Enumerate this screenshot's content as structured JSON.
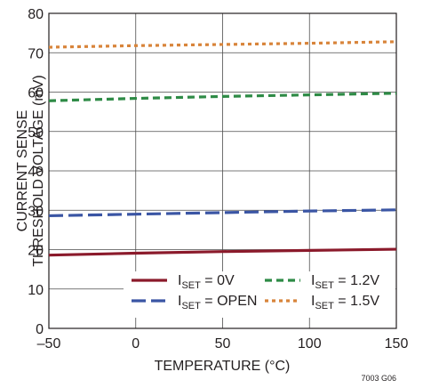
{
  "chart_data": {
    "type": "line",
    "xlabel": "TEMPERATURE (°C)",
    "ylabel_lines": [
      "CURRENT SENSE",
      "THRESHOLD VOLTAGE (mV)"
    ],
    "xlim": [
      -50,
      150
    ],
    "ylim": [
      0,
      80
    ],
    "x_ticks": [
      -50,
      0,
      50,
      100,
      150
    ],
    "y_ticks": [
      0,
      10,
      20,
      30,
      40,
      50,
      60,
      70,
      80
    ],
    "x_tick_labels": [
      "–50",
      "0",
      "50",
      "100",
      "150"
    ],
    "y_tick_labels": [
      "0",
      "10",
      "20",
      "30",
      "40",
      "50",
      "60",
      "70",
      "80"
    ],
    "grid": true,
    "legend_position": "bottom",
    "x": [
      -50,
      0,
      50,
      100,
      150
    ],
    "series": [
      {
        "name_main": "I",
        "name_sub": "SET",
        "name_rest": " = 0V",
        "color": "#8b1a2b",
        "style": "solid",
        "values": [
          18.6,
          19.1,
          19.5,
          19.8,
          20.1
        ]
      },
      {
        "name_main": "I",
        "name_sub": "SET",
        "name_rest": " = OPEN",
        "color": "#3a55a4",
        "style": "longdash",
        "values": [
          28.6,
          29.0,
          29.4,
          29.8,
          30.1
        ]
      },
      {
        "name_main": "I",
        "name_sub": "SET",
        "name_rest": " = 1.2V",
        "color": "#2e8b46",
        "style": "dash",
        "values": [
          57.8,
          58.4,
          58.9,
          59.3,
          59.7
        ]
      },
      {
        "name_main": "I",
        "name_sub": "SET",
        "name_rest": " = 1.5V",
        "color": "#d8843a",
        "style": "dot",
        "values": [
          71.4,
          71.8,
          72.1,
          72.4,
          72.8
        ]
      }
    ]
  },
  "figure_note": "7003 G06"
}
